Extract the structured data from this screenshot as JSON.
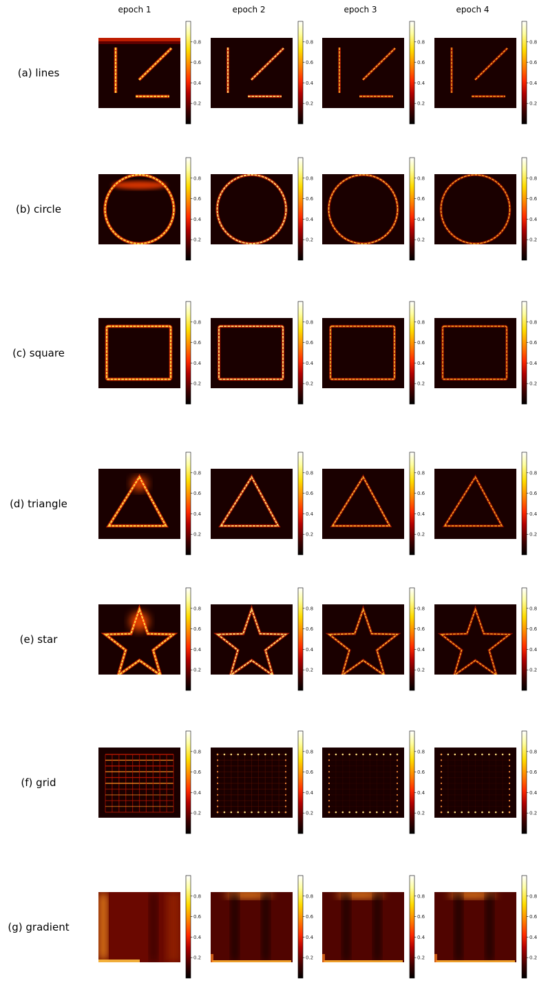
{
  "chart_data": {
    "type": "heatmap",
    "colormap": "hot",
    "column_titles": [
      "epoch 1",
      "epoch 2",
      "epoch 3",
      "epoch 4"
    ],
    "row_titles": [
      "(a) lines",
      "(b) circle",
      "(c) square",
      "(d) triangle",
      "(e) star",
      "(f) grid",
      "(g) gradient"
    ],
    "shapes": [
      "lines",
      "circle",
      "square",
      "triangle",
      "star",
      "grid",
      "gradient"
    ],
    "colorbar": {
      "range": [
        0,
        1
      ],
      "ticks": [
        0.2,
        0.4,
        0.6,
        0.8
      ],
      "tick_labels": [
        "0.2",
        "0.4",
        "0.6",
        "0.8"
      ]
    },
    "colors": {
      "background": "#1a0000",
      "cmap": [
        "#000000",
        "#5a0000",
        "#b40000",
        "#ff2a00",
        "#ff8c00",
        "#ffdc00",
        "#ffffb0",
        "#ffffff"
      ]
    }
  }
}
